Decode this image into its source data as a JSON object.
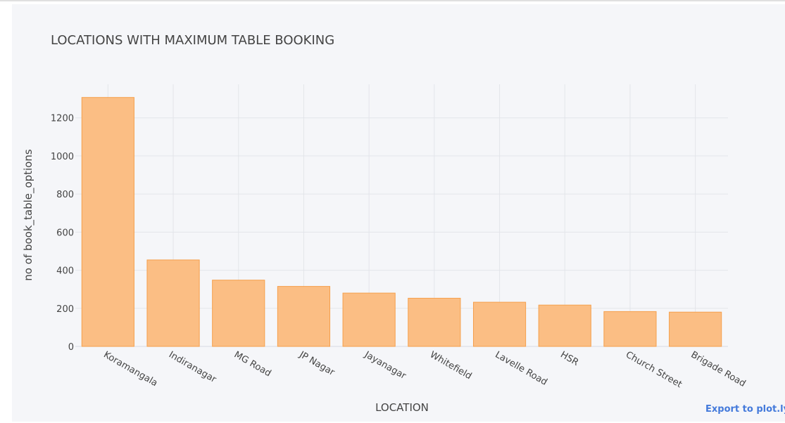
{
  "chart_data": {
    "type": "bar",
    "title": "LOCATIONS WITH MAXIMUM TABLE BOOKING",
    "xlabel": "LOCATION",
    "ylabel": "no of book_table_options",
    "categories": [
      "Koramangala",
      "Indiranagar",
      "MG Road",
      "JP Nagar",
      "Jayanagar",
      "Whitefield",
      "Lavelle Road",
      "HSR",
      "Church Street",
      "Brigade Road"
    ],
    "values": [
      1307,
      454,
      348,
      315,
      280,
      253,
      232,
      217,
      183,
      180
    ],
    "ylim": [
      0,
      1376
    ],
    "yticks": [
      0,
      200,
      400,
      600,
      800,
      1000,
      1200
    ],
    "grid": true,
    "bar_color": "#fbbe84",
    "bar_edge_color": "#f5a04c"
  },
  "export_link_label": "Export to plot.ly »"
}
